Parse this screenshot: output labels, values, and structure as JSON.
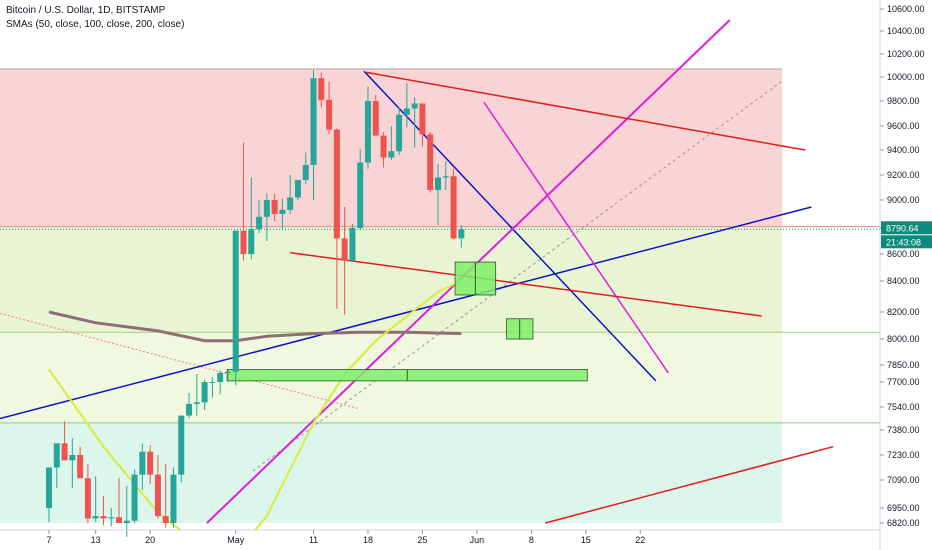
{
  "legend": {
    "title": "Bitcoin / U.S. Dollar, 1D, BITSTAMP",
    "indicator": "SMAs (50, close, 100, close, 200, close)"
  },
  "colors": {
    "bull": "#26a69a",
    "bear": "#ef5350",
    "red_zone": "#f8d4d4",
    "green_zone": "#e9f5d2",
    "teal_zone": "#dcf6ec",
    "sma50": "#d8ec39",
    "sma200": "#8e6f78",
    "blue_line": "#0d12c8",
    "magenta_line": "#dd1fdd",
    "red_line": "#e21b1b",
    "price_badge": "#0e8a7c",
    "box_fill": "#7ff06a"
  },
  "price_badge": {
    "price": "8790.64",
    "timer": "21:43:08"
  },
  "chart_data": {
    "type": "candlestick",
    "title": "Bitcoin / U.S. Dollar, 1D, BITSTAMP",
    "series_label": "SMAs (50, close, 100, close, 200, close)",
    "y_axis": {
      "position": "right",
      "ticks": [
        6820,
        6950,
        7090,
        7230,
        7380,
        7540,
        7700,
        7850,
        8000,
        8200,
        8400,
        8600,
        8800,
        9000,
        9200,
        9400,
        9600,
        9800,
        10000,
        10200,
        10400,
        10600
      ],
      "tick_labels": [
        "6820.00",
        "6950.00",
        "7090.00",
        "7230.00",
        "7380.00",
        "7540.00",
        "7700.00",
        "7850.00",
        "8000.00",
        "8200.00",
        "8400.00",
        "8600.00",
        "8800.00",
        "9000.00",
        "9200.00",
        "9400.00",
        "9600.00",
        "9800.00",
        "10000.00",
        "10200.00",
        "10400.00",
        "10600.00"
      ]
    },
    "x_axis": {
      "ticks": [
        {
          "label": "7",
          "index": 0
        },
        {
          "label": "13",
          "index": 6
        },
        {
          "label": "20",
          "index": 13
        },
        {
          "label": "May",
          "index": 24
        },
        {
          "label": "11",
          "index": 34
        },
        {
          "label": "18",
          "index": 41
        },
        {
          "label": "25",
          "index": 48
        },
        {
          "label": "Jun",
          "index": 55
        },
        {
          "label": "8",
          "index": 62
        },
        {
          "label": "15",
          "index": 69
        },
        {
          "label": "22",
          "index": 76
        }
      ]
    },
    "candles": [
      {
        "o": 6950,
        "h": 7160,
        "l": 6830,
        "c": 7160
      },
      {
        "o": 7160,
        "h": 7300,
        "l": 7050,
        "c": 7300
      },
      {
        "o": 7300,
        "h": 7440,
        "l": 7230,
        "c": 7200
      },
      {
        "o": 7200,
        "h": 7330,
        "l": 7050,
        "c": 7230
      },
      {
        "o": 7230,
        "h": 7280,
        "l": 7100,
        "c": 7100
      },
      {
        "o": 7100,
        "h": 7180,
        "l": 6820,
        "c": 6860
      },
      {
        "o": 6860,
        "h": 7110,
        "l": 6830,
        "c": 6880
      },
      {
        "o": 6880,
        "h": 7010,
        "l": 6800,
        "c": 6860
      },
      {
        "o": 6860,
        "h": 6950,
        "l": 6790,
        "c": 6870
      },
      {
        "o": 6870,
        "h": 7100,
        "l": 6830,
        "c": 6820
      },
      {
        "o": 6820,
        "h": 7060,
        "l": 6700,
        "c": 6840
      },
      {
        "o": 6840,
        "h": 7150,
        "l": 6820,
        "c": 7120
      },
      {
        "o": 7120,
        "h": 7300,
        "l": 7040,
        "c": 7250
      },
      {
        "o": 7250,
        "h": 7290,
        "l": 7070,
        "c": 7120
      },
      {
        "o": 7120,
        "h": 7230,
        "l": 6860,
        "c": 6880
      },
      {
        "o": 6880,
        "h": 7180,
        "l": 6780,
        "c": 6820
      },
      {
        "o": 6820,
        "h": 7160,
        "l": 6780,
        "c": 7120
      },
      {
        "o": 7120,
        "h": 7480,
        "l": 7080,
        "c": 7480
      },
      {
        "o": 7480,
        "h": 7630,
        "l": 7460,
        "c": 7560
      },
      {
        "o": 7560,
        "h": 7770,
        "l": 7480,
        "c": 7570
      },
      {
        "o": 7570,
        "h": 7720,
        "l": 7520,
        "c": 7700
      },
      {
        "o": 7700,
        "h": 7740,
        "l": 7600,
        "c": 7700
      },
      {
        "o": 7700,
        "h": 7800,
        "l": 7620,
        "c": 7780
      },
      {
        "o": 7780,
        "h": 7810,
        "l": 7700,
        "c": 7790
      },
      {
        "o": 7790,
        "h": 8780,
        "l": 7680,
        "c": 8780
      },
      {
        "o": 8780,
        "h": 9460,
        "l": 8550,
        "c": 8600
      },
      {
        "o": 8600,
        "h": 9180,
        "l": 8560,
        "c": 8790
      },
      {
        "o": 8790,
        "h": 9000,
        "l": 8760,
        "c": 8880
      },
      {
        "o": 8880,
        "h": 9050,
        "l": 8700,
        "c": 9000
      },
      {
        "o": 9000,
        "h": 9050,
        "l": 8850,
        "c": 8900
      },
      {
        "o": 8900,
        "h": 9010,
        "l": 8790,
        "c": 8930
      },
      {
        "o": 8930,
        "h": 9200,
        "l": 8900,
        "c": 9020
      },
      {
        "o": 9020,
        "h": 9130,
        "l": 9000,
        "c": 9160
      },
      {
        "o": 9160,
        "h": 9380,
        "l": 9130,
        "c": 9280
      },
      {
        "o": 9280,
        "h": 10060,
        "l": 9000,
        "c": 9990
      },
      {
        "o": 9990,
        "h": 10040,
        "l": 9750,
        "c": 9810
      },
      {
        "o": 9810,
        "h": 9960,
        "l": 9530,
        "c": 9570
      },
      {
        "o": 9570,
        "h": 9580,
        "l": 8220,
        "c": 8720
      },
      {
        "o": 8720,
        "h": 8950,
        "l": 8180,
        "c": 8550
      },
      {
        "o": 8550,
        "h": 8830,
        "l": 8540,
        "c": 8800
      },
      {
        "o": 8800,
        "h": 9410,
        "l": 8790,
        "c": 9300
      },
      {
        "o": 9300,
        "h": 9920,
        "l": 9250,
        "c": 9800
      },
      {
        "o": 9800,
        "h": 9850,
        "l": 9530,
        "c": 9520
      },
      {
        "o": 9520,
        "h": 9550,
        "l": 9260,
        "c": 9340
      },
      {
        "o": 9340,
        "h": 9600,
        "l": 9320,
        "c": 9390
      },
      {
        "o": 9390,
        "h": 9750,
        "l": 9360,
        "c": 9690
      },
      {
        "o": 9690,
        "h": 9950,
        "l": 9590,
        "c": 9740
      },
      {
        "o": 9740,
        "h": 9830,
        "l": 9420,
        "c": 9780
      },
      {
        "o": 9780,
        "h": 9780,
        "l": 9430,
        "c": 9530
      },
      {
        "o": 9530,
        "h": 9550,
        "l": 9060,
        "c": 9080
      },
      {
        "o": 9080,
        "h": 9290,
        "l": 8820,
        "c": 9180
      },
      {
        "o": 9180,
        "h": 9310,
        "l": 9080,
        "c": 9190
      },
      {
        "o": 9190,
        "h": 9250,
        "l": 8710,
        "c": 8720
      },
      {
        "o": 8720,
        "h": 8820,
        "l": 8650,
        "c": 8790
      }
    ],
    "sma50": {
      "color": "yellow-green",
      "points": [
        [
          0,
          7810
        ],
        [
          7,
          7280
        ],
        [
          14,
          6910
        ],
        [
          18,
          6700
        ],
        [
          24,
          6560
        ],
        [
          28,
          6880
        ],
        [
          34,
          7430
        ],
        [
          38,
          7770
        ],
        [
          42,
          7990
        ],
        [
          46,
          8170
        ],
        [
          50,
          8330
        ],
        [
          53,
          8400
        ]
      ]
    },
    "sma200": {
      "color": "mauve",
      "points": [
        [
          0,
          8200
        ],
        [
          6,
          8120
        ],
        [
          14,
          8060
        ],
        [
          20,
          7990
        ],
        [
          24,
          7990
        ],
        [
          28,
          8020
        ],
        [
          34,
          8040
        ],
        [
          40,
          8050
        ],
        [
          46,
          8050
        ],
        [
          53,
          8040
        ]
      ]
    },
    "zones": [
      {
        "name": "resistance",
        "top": 10070,
        "bottom": 8810
      },
      {
        "name": "support",
        "top": 8810,
        "bottom": 8050
      },
      {
        "name": "lower",
        "top": 8050,
        "bottom": 7430
      },
      {
        "name": "base",
        "top": 7430,
        "bottom": 6820
      }
    ],
    "horizontal_levels": [
      10070,
      8810,
      8050,
      7430
    ],
    "target_boxes": [
      {
        "start": 52.2,
        "end": 57.4,
        "top": 8540,
        "bottom": 8310
      },
      {
        "start": 58.8,
        "end": 62.2,
        "top": 8150,
        "bottom": 8000
      },
      {
        "start": 22.9,
        "end": 69.2,
        "top": 7810,
        "bottom": 7710
      }
    ]
  }
}
